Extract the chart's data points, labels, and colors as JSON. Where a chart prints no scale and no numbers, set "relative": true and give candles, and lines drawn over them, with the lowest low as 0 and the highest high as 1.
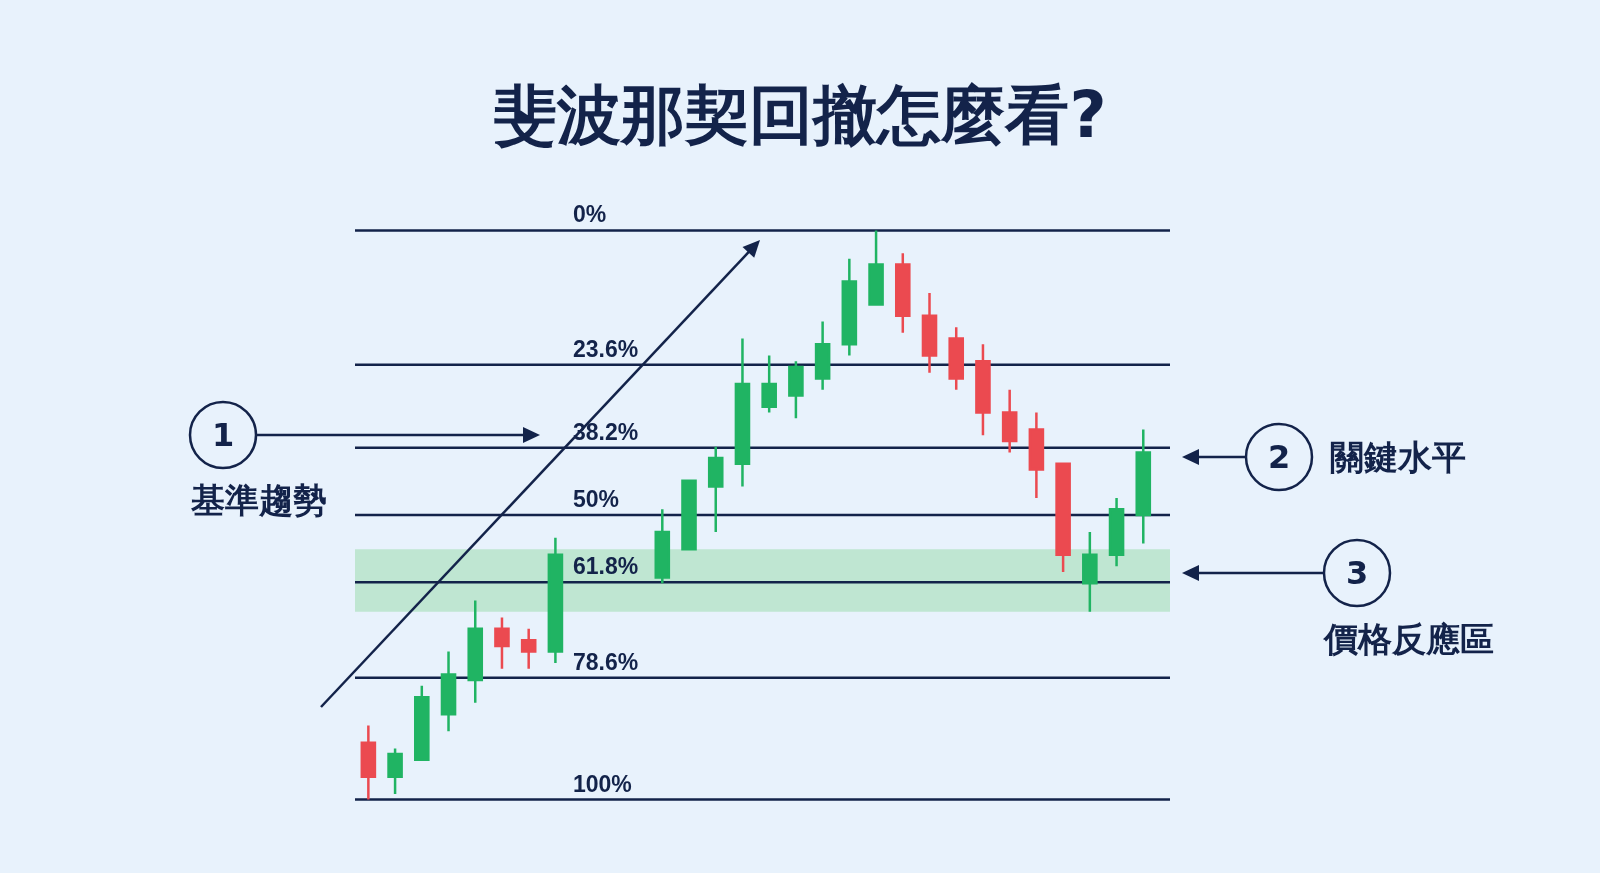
{
  "chart_data": {
    "type": "candlestick",
    "title": "斐波那契回撤怎麼看?",
    "relative": true,
    "categories": [
      null,
      null,
      null,
      null,
      null,
      null,
      null,
      null,
      null,
      null,
      null,
      null,
      null,
      null,
      null,
      null,
      null,
      null,
      null,
      null,
      null,
      null,
      null,
      null,
      null,
      null,
      null,
      null,
      null,
      null
    ],
    "ohlc": [
      [
        0.1,
        0.13,
        0.0,
        0.04
      ],
      [
        0.04,
        0.09,
        0.01,
        0.08
      ],
      [
        0.07,
        0.2,
        0.07,
        0.18
      ],
      [
        0.15,
        0.26,
        0.12,
        0.22
      ],
      [
        0.21,
        0.35,
        0.17,
        0.3
      ],
      [
        0.3,
        0.32,
        0.23,
        0.27
      ],
      [
        0.28,
        0.3,
        0.23,
        0.26
      ],
      [
        0.26,
        0.46,
        0.24,
        0.43
      ],
      null,
      null,
      null,
      [
        0.39,
        0.51,
        0.38,
        0.47
      ],
      [
        0.44,
        0.56,
        0.44,
        0.56
      ],
      [
        0.55,
        0.62,
        0.47,
        0.6
      ],
      [
        0.59,
        0.81,
        0.55,
        0.73
      ],
      [
        0.69,
        0.78,
        0.68,
        0.73
      ],
      [
        0.71,
        0.77,
        0.67,
        0.76
      ],
      [
        0.74,
        0.84,
        0.72,
        0.8
      ],
      [
        0.8,
        0.95,
        0.78,
        0.91
      ],
      [
        0.87,
        1.0,
        0.87,
        0.94
      ],
      [
        0.94,
        0.96,
        0.82,
        0.85
      ],
      [
        0.85,
        0.89,
        0.75,
        0.78
      ],
      [
        0.81,
        0.83,
        0.72,
        0.74
      ],
      [
        0.77,
        0.8,
        0.64,
        0.68
      ],
      [
        0.68,
        0.72,
        0.61,
        0.63
      ],
      [
        0.65,
        0.68,
        0.53,
        0.58
      ],
      [
        0.59,
        0.59,
        0.4,
        0.43
      ],
      [
        0.38,
        0.47,
        0.33,
        0.43
      ],
      [
        0.43,
        0.53,
        0.41,
        0.51
      ],
      [
        0.5,
        0.65,
        0.45,
        0.61
      ]
    ],
    "colors": [
      "#eb4a50",
      "#20b463",
      "#20b463",
      "#20b463",
      "#20b463",
      "#eb4a50",
      "#eb4a50",
      "#20b463",
      null,
      null,
      null,
      "#20b463",
      "#20b463",
      "#20b463",
      "#20b463",
      "#20b463",
      "#20b463",
      "#20b463",
      "#20b463",
      "#20b463",
      "#eb4a50",
      "#eb4a50",
      "#eb4a50",
      "#eb4a50",
      "#eb4a50",
      "#eb4a50",
      "#eb4a50",
      "#20b463",
      "#20b463",
      "#20b463"
    ],
    "ref_lines": [
      {
        "axis": "y",
        "value": 1,
        "color": "#13234a"
      },
      {
        "axis": "y",
        "value": 0.764,
        "color": "#13234a"
      },
      {
        "axis": "y",
        "value": 0.618,
        "color": "#13234a"
      },
      {
        "axis": "y",
        "value": 0.5,
        "color": "#13234a"
      },
      {
        "axis": "y",
        "value": 0.382,
        "color": "#13234a"
      },
      {
        "axis": "y",
        "value": 0.214,
        "color": "#13234a"
      },
      {
        "axis": "y",
        "value": 0,
        "color": "#13234a"
      }
    ],
    "bands": [
      {
        "axis": "y",
        "from": 0.33,
        "to": 0.44,
        "color": "#bfe6d2"
      }
    ],
    "annotations": [
      {
        "text": "0%",
        "y": 1
      },
      {
        "text": "23.6%",
        "y": 0.764
      },
      {
        "text": "38.2%",
        "y": 0.618
      },
      {
        "text": "50%",
        "y": 0.5
      },
      {
        "text": "61.8%",
        "y": 0.382
      },
      {
        "text": "78.6%",
        "y": 0.214
      },
      {
        "text": "100%",
        "y": 0
      },
      "1",
      "基準趨勢",
      "2",
      "關鍵水平",
      "3",
      "價格反應區"
    ]
  }
}
